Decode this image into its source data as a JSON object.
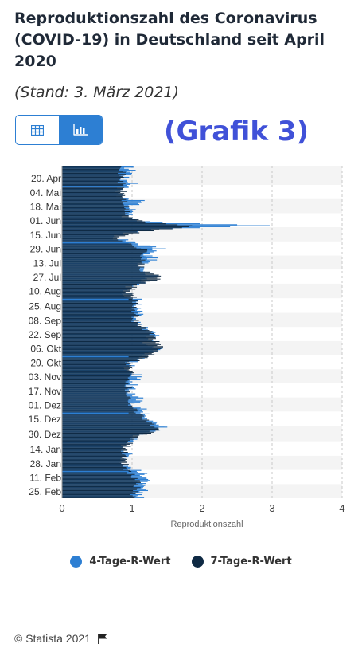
{
  "header": {
    "title": "Reproduktionszahl des Coronavirus (COVID-19) in Deutschland seit April 2020",
    "subtitle": "(Stand: 3. März 2021)"
  },
  "toolbar": {
    "table_icon": "table-icon",
    "chart_icon": "bar-chart-icon",
    "active": "chart"
  },
  "annotation": "(Grafik 3)",
  "footer": {
    "source": "© Statista 2021",
    "flag_icon": "flag-icon"
  },
  "colors": {
    "series_4day": "#2d7fd3",
    "series_7day": "#0f2a44",
    "grid_band": "#f4f4f4"
  },
  "chart_data": {
    "type": "bar",
    "orientation": "horizontal",
    "xlabel": "Reproduktionszahl",
    "xlim": [
      0,
      4
    ],
    "x_ticks": [
      "0",
      "1",
      "2",
      "3",
      "4"
    ],
    "y_tick_labels": [
      "20. Apr",
      "04. Mai",
      "18. Mai",
      "01. Jun",
      "15. Jun",
      "29. Jun",
      "13. Jul",
      "27. Jul",
      "10. Aug",
      "25. Aug",
      "08. Sep",
      "22. Sep",
      "06. Okt",
      "20. Okt",
      "03. Nov",
      "17. Nov",
      "01. Dez",
      "15. Dez",
      "30. Dez",
      "14. Jan",
      "28. Jan",
      "11. Feb",
      "25. Feb"
    ],
    "grid": true,
    "legend_position": "bottom",
    "series": [
      {
        "name": "4-Tage-R-Wert",
        "anchors": [
          [
            "04-08",
            0.95
          ],
          [
            "04-15",
            1.0
          ],
          [
            "04-20",
            0.85
          ],
          [
            "04-25",
            1.05
          ],
          [
            "05-01",
            0.8
          ],
          [
            "05-08",
            0.85
          ],
          [
            "05-13",
            1.15
          ],
          [
            "05-18",
            0.95
          ],
          [
            "05-24",
            1.05
          ],
          [
            "05-28",
            0.9
          ],
          [
            "06-01",
            1.0
          ],
          [
            "06-03",
            1.4
          ],
          [
            "06-05",
            2.5
          ],
          [
            "06-06",
            2.88
          ],
          [
            "06-08",
            2.0
          ],
          [
            "06-10",
            1.3
          ],
          [
            "06-14",
            0.8
          ],
          [
            "06-18",
            0.75
          ],
          [
            "06-24",
            1.1
          ],
          [
            "06-29",
            1.4
          ],
          [
            "07-04",
            1.2
          ],
          [
            "07-09",
            1.3
          ],
          [
            "07-14",
            1.15
          ],
          [
            "07-20",
            1.2
          ],
          [
            "07-27",
            1.3
          ],
          [
            "08-01",
            1.15
          ],
          [
            "08-07",
            0.9
          ],
          [
            "08-14",
            0.95
          ],
          [
            "08-20",
            1.1
          ],
          [
            "08-25",
            1.05
          ],
          [
            "09-01",
            1.1
          ],
          [
            "09-08",
            1.0
          ],
          [
            "09-15",
            1.15
          ],
          [
            "09-22",
            1.35
          ],
          [
            "09-29",
            1.2
          ],
          [
            "10-06",
            1.35
          ],
          [
            "10-13",
            1.2
          ],
          [
            "10-20",
            1.0
          ],
          [
            "10-27",
            0.95
          ],
          [
            "11-03",
            1.1
          ],
          [
            "11-10",
            1.0
          ],
          [
            "11-17",
            0.95
          ],
          [
            "11-24",
            1.1
          ],
          [
            "12-01",
            1.05
          ],
          [
            "12-08",
            1.2
          ],
          [
            "12-13",
            1.15
          ],
          [
            "12-18",
            1.3
          ],
          [
            "12-23",
            1.5
          ],
          [
            "12-30",
            1.15
          ],
          [
            "01-06",
            0.95
          ],
          [
            "01-14",
            0.9
          ],
          [
            "01-21",
            0.95
          ],
          [
            "01-28",
            0.85
          ],
          [
            "02-04",
            1.05
          ],
          [
            "02-11",
            1.25
          ],
          [
            "02-18",
            1.1
          ],
          [
            "02-25",
            1.15
          ],
          [
            "03-03",
            1.1
          ]
        ]
      },
      {
        "name": "7-Tage-R-Wert",
        "anchors": [
          [
            "04-08",
            0.9
          ],
          [
            "04-15",
            0.85
          ],
          [
            "04-25",
            0.85
          ],
          [
            "05-08",
            0.88
          ],
          [
            "05-18",
            0.9
          ],
          [
            "05-28",
            0.95
          ],
          [
            "06-03",
            1.2
          ],
          [
            "06-06",
            1.9
          ],
          [
            "06-09",
            1.6
          ],
          [
            "06-12",
            1.1
          ],
          [
            "06-18",
            0.8
          ],
          [
            "06-24",
            0.95
          ],
          [
            "07-01",
            1.2
          ],
          [
            "07-10",
            1.15
          ],
          [
            "07-20",
            1.1
          ],
          [
            "07-27",
            1.45
          ],
          [
            "08-03",
            1.1
          ],
          [
            "08-10",
            0.95
          ],
          [
            "08-20",
            1.05
          ],
          [
            "09-01",
            1.05
          ],
          [
            "09-10",
            1.05
          ],
          [
            "09-22",
            1.3
          ],
          [
            "10-06",
            1.4
          ],
          [
            "10-15",
            1.25
          ],
          [
            "10-20",
            0.95
          ],
          [
            "11-01",
            1.0
          ],
          [
            "11-10",
            0.95
          ],
          [
            "11-20",
            0.95
          ],
          [
            "12-01",
            1.0
          ],
          [
            "12-10",
            1.1
          ],
          [
            "12-18",
            1.25
          ],
          [
            "12-26",
            1.35
          ],
          [
            "01-03",
            1.0
          ],
          [
            "01-14",
            0.9
          ],
          [
            "01-28",
            0.9
          ],
          [
            "02-06",
            0.95
          ],
          [
            "02-15",
            1.1
          ],
          [
            "02-25",
            1.05
          ],
          [
            "03-03",
            1.0
          ]
        ]
      }
    ]
  }
}
